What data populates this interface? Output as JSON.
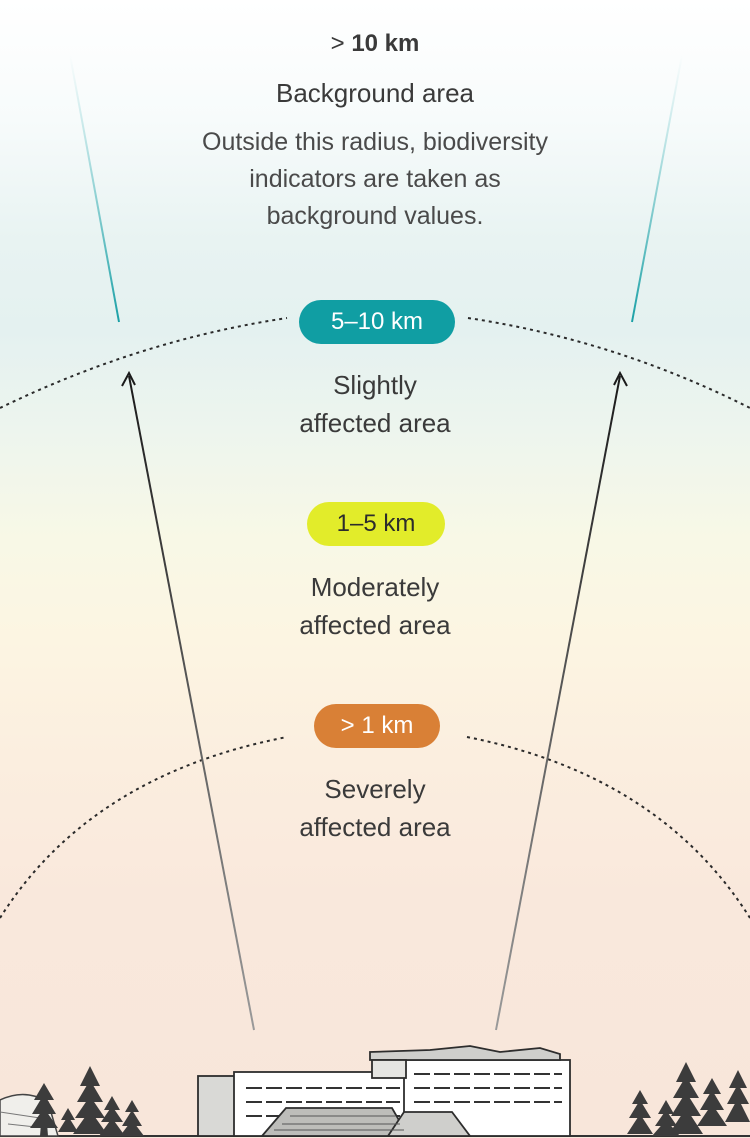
{
  "background": {
    "range_prefix": ">",
    "range_value": "10 km",
    "title": "Background area",
    "description_lines": [
      "Outside this radius, biodiversity",
      "indicators are taken as",
      "background values."
    ]
  },
  "zones": [
    {
      "range": "5–10 km",
      "title_lines": [
        "Slightly",
        "affected area"
      ],
      "color": "#109ea3"
    },
    {
      "range": "1–5 km",
      "title_lines": [
        "Moderately",
        "affected area"
      ],
      "color": "#e2ec2a"
    },
    {
      "range": "> 1 km",
      "title_lines": [
        "Severely",
        "affected area"
      ],
      "color": "#d98036"
    }
  ],
  "icons": [
    "industrial-building-illustration",
    "pine-tree-icon",
    "rock-icon"
  ]
}
